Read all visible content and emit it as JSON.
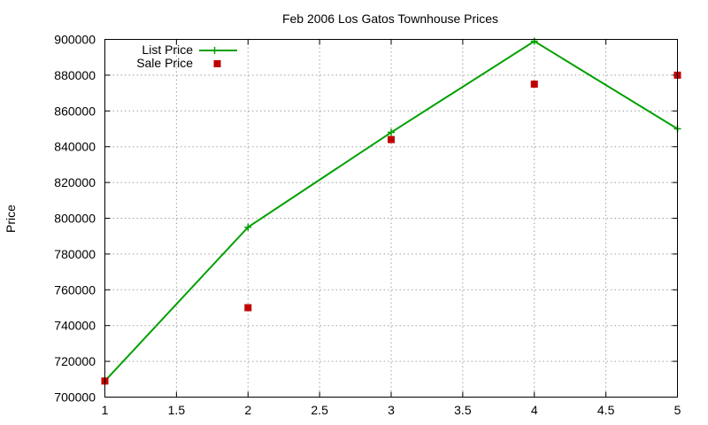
{
  "chart_data": {
    "type": "line",
    "title": "Feb 2006 Los Gatos Townhouse Prices",
    "xlabel": "",
    "ylabel": "Price",
    "xlim": [
      1,
      5
    ],
    "ylim": [
      700000,
      900000
    ],
    "xticks": [
      "1",
      "1.5",
      "2",
      "2.5",
      "3",
      "3.5",
      "4",
      "4.5",
      "5"
    ],
    "yticks": [
      "700000",
      "720000",
      "740000",
      "760000",
      "780000",
      "800000",
      "820000",
      "840000",
      "860000",
      "880000",
      "900000"
    ],
    "grid": true,
    "legend_position": "top-left",
    "series": [
      {
        "name": "List Price",
        "style": "linespoints",
        "marker": "plus",
        "color": "#00a000",
        "x": [
          1,
          2,
          3,
          4,
          5
        ],
        "values": [
          709000,
          795000,
          848000,
          899000,
          850000
        ]
      },
      {
        "name": "Sale Price",
        "style": "points",
        "marker": "square",
        "color": "#c00000",
        "x": [
          1,
          2,
          3,
          4,
          5
        ],
        "values": [
          709000,
          750000,
          844000,
          875000,
          880000
        ]
      }
    ]
  }
}
